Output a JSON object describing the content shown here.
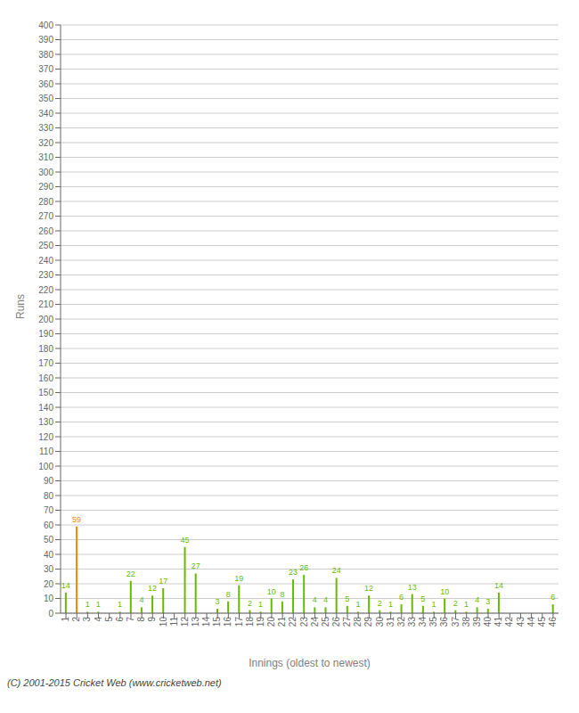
{
  "chart_data": {
    "type": "bar",
    "categories": [
      "1",
      "2",
      "3",
      "4",
      "5",
      "6",
      "7",
      "8",
      "9",
      "10",
      "11",
      "12",
      "13",
      "14",
      "15",
      "16",
      "17",
      "18",
      "19",
      "20",
      "21",
      "22",
      "23",
      "24",
      "25",
      "26",
      "27",
      "28",
      "29",
      "30",
      "31",
      "32",
      "33",
      "34",
      "35",
      "36",
      "37",
      "38",
      "39",
      "40",
      "41",
      "42",
      "43",
      "44",
      "45",
      "46"
    ],
    "values": [
      14,
      59,
      1,
      1,
      0,
      1,
      22,
      4,
      12,
      17,
      0,
      45,
      27,
      0,
      3,
      8,
      19,
      2,
      1,
      10,
      8,
      23,
      26,
      4,
      4,
      24,
      5,
      1,
      12,
      2,
      1,
      6,
      13,
      5,
      1,
      10,
      2,
      1,
      4,
      3,
      14,
      0,
      0,
      0,
      0,
      6
    ],
    "colors": [
      "#66bb00",
      "#ff8800",
      "#66bb00",
      "#66bb00",
      "#66bb00",
      "#66bb00",
      "#66bb00",
      "#66bb00",
      "#66bb00",
      "#66bb00",
      "#66bb00",
      "#66bb00",
      "#66bb00",
      "#66bb00",
      "#66bb00",
      "#66bb00",
      "#66bb00",
      "#66bb00",
      "#66bb00",
      "#66bb00",
      "#66bb00",
      "#66bb00",
      "#66bb00",
      "#66bb00",
      "#66bb00",
      "#66bb00",
      "#66bb00",
      "#66bb00",
      "#66bb00",
      "#66bb00",
      "#66bb00",
      "#66bb00",
      "#66bb00",
      "#66bb00",
      "#66bb00",
      "#66bb00",
      "#66bb00",
      "#66bb00",
      "#66bb00",
      "#66bb00",
      "#66bb00",
      "#66bb00",
      "#66bb00",
      "#66bb00",
      "#66bb00",
      "#66bb00"
    ],
    "ylabel": "Runs",
    "xlabel": "Innings (oldest to newest)",
    "ylim": [
      0,
      400
    ],
    "yticks": [
      0,
      10,
      20,
      30,
      40,
      50,
      60,
      70,
      80,
      90,
      100,
      110,
      120,
      130,
      140,
      150,
      160,
      170,
      180,
      190,
      200,
      210,
      220,
      230,
      240,
      250,
      260,
      270,
      280,
      290,
      300,
      310,
      320,
      330,
      340,
      350,
      360,
      370,
      380,
      390,
      400
    ],
    "grid": true,
    "data_labels": true,
    "annotations": [
      "(C) 2001-2015 Cricket Web (www.cricketweb.net)"
    ]
  }
}
